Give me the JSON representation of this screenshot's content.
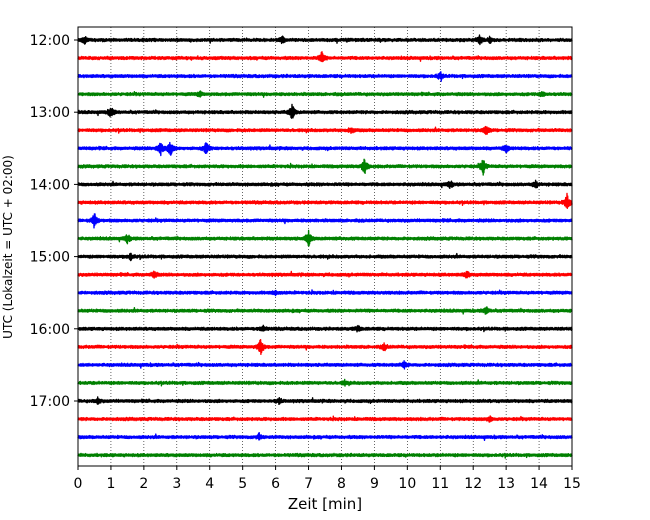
{
  "chart_data": {
    "type": "line",
    "title": "",
    "xlabel": "Zeit  [min]",
    "ylabel": "UTC (Lokalzeit = UTC + 02:00)",
    "xlim": [
      0,
      15
    ],
    "xticks": [
      0,
      1,
      2,
      3,
      4,
      5,
      6,
      7,
      8,
      9,
      10,
      11,
      12,
      13,
      14,
      15
    ],
    "xtick_labels": [
      "0",
      "1",
      "2",
      "3",
      "4",
      "5",
      "6",
      "7",
      "8",
      "9",
      "10",
      "11",
      "12",
      "13",
      "14",
      "15"
    ],
    "ytick_labels": [
      "12:00",
      "13:00",
      "14:00",
      "15:00",
      "16:00",
      "17:00"
    ],
    "grid": "vertical dotted lines at each minute",
    "rows": [
      {
        "start": "12:00",
        "color": "#000000",
        "events": [
          [
            0.2,
            0.5
          ],
          [
            6.2,
            0.45
          ],
          [
            12.2,
            0.5
          ],
          [
            12.5,
            0.4
          ]
        ]
      },
      {
        "start": "12:15",
        "color": "#ff0000",
        "events": [
          [
            7.4,
            0.7
          ]
        ]
      },
      {
        "start": "12:30",
        "color": "#0000ff",
        "events": [
          [
            11.0,
            0.45
          ]
        ]
      },
      {
        "start": "12:45",
        "color": "#008000",
        "events": [
          [
            3.7,
            0.3
          ],
          [
            14.1,
            0.3
          ]
        ]
      },
      {
        "start": "13:00",
        "color": "#000000",
        "events": [
          [
            1.0,
            0.6
          ],
          [
            6.5,
            1.0
          ]
        ]
      },
      {
        "start": "13:15",
        "color": "#ff0000",
        "events": [
          [
            8.3,
            0.4
          ],
          [
            12.4,
            0.6
          ]
        ]
      },
      {
        "start": "13:30",
        "color": "#0000ff",
        "events": [
          [
            2.5,
            1.0
          ],
          [
            2.8,
            1.0
          ],
          [
            3.9,
            0.8
          ],
          [
            13.0,
            0.5
          ]
        ]
      },
      {
        "start": "13:45",
        "color": "#008000",
        "events": [
          [
            8.7,
            1.0
          ],
          [
            12.3,
            0.9
          ]
        ]
      },
      {
        "start": "14:00",
        "color": "#000000",
        "events": [
          [
            11.3,
            0.4
          ],
          [
            13.9,
            0.4
          ]
        ]
      },
      {
        "start": "14:15",
        "color": "#ff0000",
        "events": [
          [
            14.85,
            1.0
          ]
        ]
      },
      {
        "start": "14:30",
        "color": "#0000ff",
        "events": [
          [
            0.5,
            0.9
          ]
        ]
      },
      {
        "start": "14:45",
        "color": "#008000",
        "events": [
          [
            1.5,
            0.5
          ],
          [
            7.0,
            1.0
          ]
        ]
      },
      {
        "start": "15:00",
        "color": "#000000",
        "events": [
          [
            1.6,
            0.4
          ]
        ]
      },
      {
        "start": "15:15",
        "color": "#ff0000",
        "events": [
          [
            2.3,
            0.45
          ],
          [
            11.8,
            0.4
          ]
        ]
      },
      {
        "start": "15:30",
        "color": "#0000ff",
        "events": [
          [
            6.0,
            0.3
          ]
        ]
      },
      {
        "start": "15:45",
        "color": "#008000",
        "events": [
          [
            12.4,
            0.45
          ]
        ]
      },
      {
        "start": "16:00",
        "color": "#000000",
        "events": [
          [
            5.6,
            0.4
          ],
          [
            8.5,
            0.35
          ]
        ]
      },
      {
        "start": "16:15",
        "color": "#ff0000",
        "events": [
          [
            5.55,
            1.0
          ],
          [
            9.3,
            0.4
          ]
        ]
      },
      {
        "start": "16:30",
        "color": "#0000ff",
        "events": [
          [
            9.9,
            0.4
          ]
        ]
      },
      {
        "start": "16:45",
        "color": "#008000",
        "events": [
          [
            8.1,
            0.25
          ]
        ]
      },
      {
        "start": "17:00",
        "color": "#000000",
        "events": [
          [
            0.6,
            0.35
          ],
          [
            6.1,
            0.35
          ]
        ]
      },
      {
        "start": "17:15",
        "color": "#ff0000",
        "events": [
          [
            12.5,
            0.3
          ]
        ]
      },
      {
        "start": "17:30",
        "color": "#0000ff",
        "events": [
          [
            5.5,
            0.35
          ]
        ]
      },
      {
        "start": "17:45",
        "color": "#008000",
        "events": []
      }
    ]
  }
}
